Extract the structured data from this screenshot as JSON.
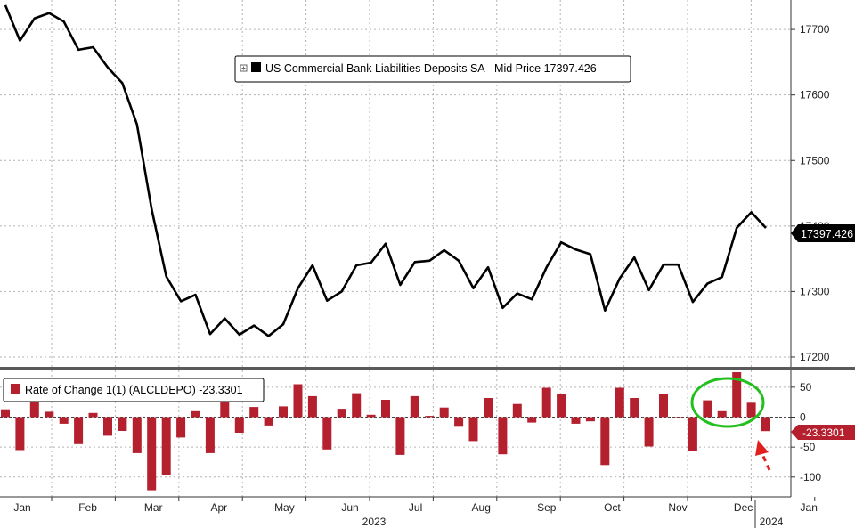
{
  "chart_data": [
    {
      "type": "line",
      "legend_label": "US Commercial Bank Liabilities Deposits SA - Mid Price 17397.426",
      "last_value_label": "17397.426",
      "ylim": [
        17185,
        17745
      ],
      "yticks": [
        17200,
        17300,
        17400,
        17500,
        17600,
        17700
      ],
      "ytick_labels": [
        "17200",
        "17300",
        "17400",
        "17500",
        "17600",
        "17700"
      ],
      "grid": true,
      "series_color": "#000000",
      "values": [
        17737,
        17683,
        17717,
        17725,
        17712,
        17669,
        17673,
        17642,
        17618,
        17555,
        17426,
        17323,
        17285,
        17295,
        17235,
        17259,
        17234,
        17248,
        17232,
        17250,
        17305,
        17340,
        17286,
        17300,
        17340,
        17344,
        17373,
        17310,
        17345,
        17347,
        17363,
        17347,
        17305,
        17337,
        17275,
        17297,
        17288,
        17337,
        17375,
        17364,
        17357,
        17271,
        17320,
        17352,
        17302,
        17341,
        17341,
        17284,
        17312,
        17322,
        17397,
        17421,
        17397
      ]
    },
    {
      "type": "bar",
      "legend_label": "Rate of Change 1(1) (ALCLDEPO) -23.3301",
      "last_value_label": "-23.3301",
      "ylim": [
        -133,
        78
      ],
      "yticks": [
        -100,
        -50,
        0,
        50
      ],
      "ytick_labels": [
        "-100",
        "-50",
        "0",
        "50"
      ],
      "grid": true,
      "bar_color": "#b5202e",
      "values": [
        13,
        -55,
        33,
        9,
        -11,
        -45,
        7,
        -31,
        -23,
        -60,
        -122,
        -97,
        -34,
        10,
        -60,
        27,
        -26,
        17,
        -14,
        18,
        55,
        35,
        -54,
        14,
        40,
        4,
        29,
        -63,
        35,
        2,
        16,
        -16,
        -40,
        32,
        -62,
        22,
        -9,
        49,
        38,
        -11,
        -7,
        -80,
        49,
        32,
        -49,
        39,
        0,
        -56,
        28,
        10,
        75,
        24,
        -23.3301
      ],
      "x_labels": [
        "Jan",
        "Feb",
        "Mar",
        "Apr",
        "May",
        "Jun",
        "Jul",
        "Aug",
        "Sep",
        "Oct",
        "Nov",
        "Dec",
        "Jan"
      ],
      "x_year_labels": [
        "2023",
        "2024"
      ],
      "highlight_color": "#22c01e",
      "arrow_color": "#e0201e"
    }
  ]
}
